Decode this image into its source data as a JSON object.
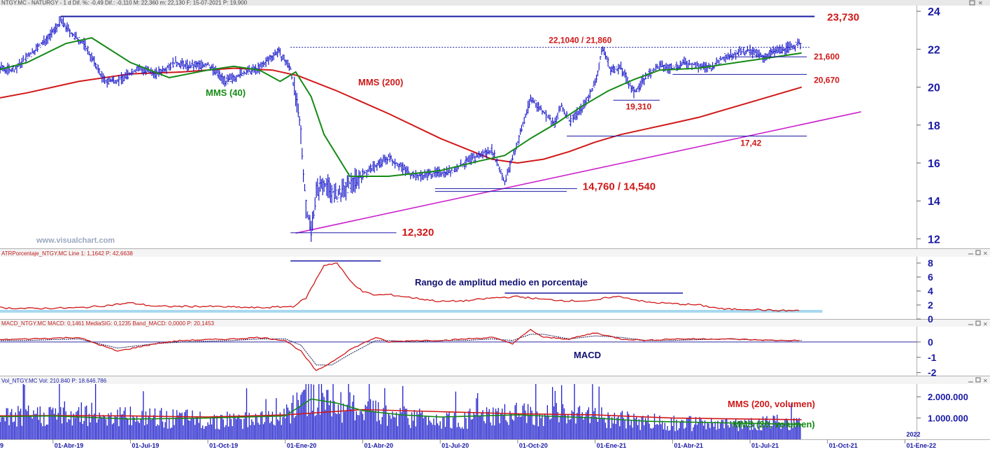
{
  "header": {
    "main": "NTGY.MC - NATURGY - 1 d  Dif. %: -0,49  Dif.: -0,110  M: 22,360  m: 22,130  F: 15-07-2021  P: 19,900",
    "atr": "ATRPorcentaje_NTGY.MC  Line 1: 1,1642  P: 42,6638",
    "macd": "MACD_NTGY.MC  MACD: 0,1461  MediaSIG: 0,1235  Band_MACD: 0,0000  P: 20,1453",
    "vol": "Vol_NTGY.MC  Vol: 210.840  P: 18.646.786"
  },
  "watermark": "www.visualchart.com",
  "colors": {
    "price": "#1d1dcc",
    "mms40": "#168a16",
    "mms200": "#d01818",
    "trend": "#cc22cc",
    "level": "#1a1aa6",
    "label_red": "#d01818",
    "label_navy": "#101070",
    "axis_text": "#1a1aa6",
    "band": "#a8d8f0",
    "grid": "#c8c8c8"
  },
  "labels": {
    "mms40": "MMS (40)",
    "mms200": "MMS (200)",
    "atr_title": "Rango de amplitud medio en porcentaje",
    "macd_title": "MACD",
    "vol200": "MMS (200, volumen)",
    "vol20": "MMS (20, volumen)"
  },
  "chart_data": [
    {
      "type": "line",
      "panel": "price",
      "x_ticks": [
        "9",
        "01-Abr-19",
        "01-Jul-19",
        "01-Oct-19",
        "01-Ene-20",
        "01-Abr-20",
        "01-Jul-20",
        "01-Oct-20",
        "01-Ene-21",
        "01-Abr-21",
        "01-Jul-21",
        "01-Oct-21",
        "01-Ene-22"
      ],
      "x_extra_label": "2022",
      "y_ticks": [
        "24",
        "22",
        "20",
        "18",
        "16",
        "14",
        "12"
      ],
      "ylim": [
        11.5,
        24.3
      ],
      "xlim": [
        0,
        35.5
      ],
      "x_unit": "months since Jan-2019",
      "series": [
        {
          "name": "NATURGY",
          "x": [
            0,
            0.5,
            1,
            1.5,
            2,
            2.5,
            3,
            3.3,
            3.8,
            4.2,
            5,
            5.6,
            6.3,
            7,
            7.7,
            8.3,
            9,
            9.7,
            10.3,
            11,
            11.7,
            12.2,
            12.4,
            12.6,
            12.8,
            13,
            13.2,
            13.5,
            14,
            14.5,
            15,
            16,
            17,
            18,
            18.5,
            19.2,
            20,
            20.5,
            21,
            21.5,
            22,
            22.4,
            22.7,
            23,
            23.5,
            24,
            24.3,
            24.6,
            25,
            25.5,
            26,
            26.5,
            27,
            27.5,
            28,
            28.5,
            29,
            29.5,
            30,
            30.5,
            31,
            31.5,
            32
          ],
          "y": [
            21.1,
            20.6,
            21.0,
            20.9,
            21.6,
            22.2,
            22.9,
            23.5,
            22.7,
            22.3,
            20.3,
            20.4,
            21.0,
            20.7,
            21.3,
            21.1,
            21.2,
            20.3,
            20.7,
            21.0,
            21.9,
            21.0,
            19.5,
            17.5,
            13.7,
            12.5,
            14.5,
            15.0,
            14.2,
            14.9,
            15.4,
            16.3,
            15.3,
            15.5,
            15.6,
            16.2,
            16.7,
            15.0,
            17.1,
            19.4,
            18.7,
            18.0,
            19.0,
            18.2,
            18.9,
            20.2,
            22.1,
            20.9,
            21.0,
            19.7,
            20.6,
            21.1,
            21.0,
            21.3,
            21.1,
            21.0,
            21.6,
            21.8,
            21.9,
            21.6,
            21.9,
            22.1,
            22.3
          ]
        },
        {
          "name": "MMS (40)",
          "x": [
            0,
            2,
            3.5,
            4.5,
            6,
            7.5,
            9,
            10,
            11,
            11.8,
            12.4,
            13,
            13.5,
            14.5,
            16,
            18,
            19.5,
            20.5,
            21.5,
            22.5,
            23.5,
            24.5,
            25.5,
            26.5,
            28,
            29.5,
            31,
            32
          ],
          "y": [
            20.6,
            21.3,
            22.3,
            22.6,
            21.3,
            20.5,
            20.9,
            21.1,
            20.9,
            20.3,
            20.8,
            19.5,
            17.5,
            15.3,
            15.3,
            15.6,
            16.1,
            16.4,
            17.3,
            18.1,
            19.0,
            19.8,
            20.4,
            20.9,
            21.0,
            21.3,
            21.6,
            21.8
          ]
        },
        {
          "name": "MMS (200)",
          "x": [
            0,
            2,
            4,
            6,
            8,
            10,
            11.5,
            12.5,
            14,
            16,
            18,
            20,
            21,
            22,
            23,
            24,
            25,
            26,
            27,
            28,
            29,
            30,
            31,
            32
          ],
          "y": [
            19.2,
            19.7,
            20.3,
            20.7,
            20.8,
            21.0,
            20.9,
            20.6,
            19.8,
            18.6,
            17.3,
            16.2,
            16.0,
            16.2,
            16.6,
            17.1,
            17.5,
            17.8,
            18.1,
            18.4,
            18.8,
            19.2,
            19.6,
            20.0
          ]
        },
        {
          "name": "trend",
          "x": [
            12.4,
            34.3
          ],
          "y": [
            12.3,
            18.7
          ]
        }
      ],
      "levels": [
        {
          "label": "23,730",
          "value": 23.73,
          "x0": 3.3,
          "x1": 32.5
        },
        {
          "label": "22,1040 / 21,860",
          "value": 22.1,
          "x0": 12.2,
          "x1": 32.3
        },
        {
          "label": "21,600",
          "value": 21.6,
          "x0": 29.2,
          "x1": 32.2
        },
        {
          "label": "20,670",
          "value": 20.67,
          "x0": 27.0,
          "x1": 32.2
        },
        {
          "label": "19,310",
          "value": 19.31,
          "x0": 24.7,
          "x1": 26.5
        },
        {
          "label": "17,42",
          "value": 17.42,
          "x0": 22.9,
          "x1": 32.2
        },
        {
          "label": "14,760 / 14,540",
          "value": 14.65,
          "x0": 17.8,
          "x1": 23.3
        },
        {
          "label": "12,320",
          "value": 12.32,
          "x0": 12.2,
          "x1": 16.3
        }
      ]
    },
    {
      "type": "line",
      "panel": "atr",
      "y_ticks": [
        "8",
        "6",
        "4",
        "2",
        "0"
      ],
      "ylim": [
        0,
        8.8
      ],
      "series": [
        {
          "name": "ATR %",
          "x": [
            0,
            2,
            4,
            5,
            6,
            7,
            9,
            11,
            12.3,
            12.8,
            13.5,
            14,
            14.5,
            15,
            15.5,
            16,
            17,
            18,
            19,
            20,
            21,
            22,
            23,
            24,
            24.5,
            25,
            26,
            27,
            28,
            29,
            30,
            31,
            32
          ],
          "y": [
            1.7,
            1.5,
            1.6,
            1.9,
            2.3,
            1.8,
            1.8,
            1.6,
            1.8,
            3.0,
            7.7,
            8.0,
            5.5,
            3.9,
            3.4,
            3.5,
            3.0,
            2.5,
            2.6,
            3.0,
            3.2,
            2.8,
            2.6,
            2.6,
            3.1,
            3.2,
            2.4,
            2.2,
            2.0,
            1.4,
            1.4,
            1.2,
            1.2
          ]
        }
      ],
      "marks": [
        {
          "value": 8.3,
          "x0": 12.2,
          "x1": 15.7
        },
        {
          "value": 3.7,
          "x0": 20.5,
          "x1": 27.4
        },
        {
          "value": 1.1,
          "x0": 0,
          "x1": 32.8
        }
      ]
    },
    {
      "type": "line",
      "panel": "macd",
      "y_ticks": [
        "0",
        "-1",
        "-2"
      ],
      "ylim": [
        -2.2,
        1.0
      ],
      "series": [
        {
          "name": "MACD",
          "x": [
            0,
            2,
            4,
            5.5,
            7,
            8,
            10,
            11,
            12,
            12.6,
            13.2,
            13.8,
            14.5,
            15.5,
            16,
            17,
            18,
            19,
            20,
            20.8,
            21.5,
            22,
            23,
            24,
            25,
            26,
            27,
            29,
            31,
            32
          ],
          "y": [
            0.1,
            0.2,
            0.3,
            -0.6,
            -0.1,
            0.1,
            0.2,
            0.3,
            0.1,
            -0.6,
            -1.9,
            -1.3,
            -0.5,
            0.3,
            0.0,
            0.1,
            0.1,
            0.2,
            0.3,
            -0.1,
            0.8,
            0.3,
            0.2,
            0.6,
            0.2,
            0.1,
            0.2,
            0.2,
            0.1,
            0.1
          ]
        },
        {
          "name": "Signal",
          "x": [
            0,
            2,
            4,
            5.5,
            7,
            8,
            10,
            11,
            12,
            12.6,
            13.2,
            13.8,
            14.5,
            15.5,
            16,
            17,
            18,
            19,
            20,
            20.8,
            21.5,
            22,
            23,
            24,
            25,
            26,
            27,
            29,
            31,
            32
          ],
          "y": [
            0.1,
            0.1,
            0.2,
            -0.4,
            -0.1,
            0.0,
            0.1,
            0.2,
            0.2,
            -0.2,
            -1.5,
            -1.5,
            -0.8,
            0.1,
            0.1,
            0.0,
            0.1,
            0.1,
            0.2,
            0.1,
            0.5,
            0.5,
            0.2,
            0.4,
            0.3,
            0.1,
            0.1,
            0.2,
            0.1,
            0.1
          ]
        }
      ]
    },
    {
      "type": "bar",
      "panel": "volume",
      "y_ticks": [
        "2.000.000",
        "1.000.000"
      ],
      "ylim": [
        0,
        2600000
      ],
      "series": [
        {
          "name": "Volumen",
          "x": [
            0,
            2,
            4,
            6,
            8,
            10,
            12,
            13,
            13.5,
            14,
            15,
            16,
            17,
            18,
            19,
            20,
            21,
            22,
            23,
            24,
            25,
            26,
            27,
            28,
            29,
            30,
            31,
            32
          ],
          "y": [
            1100000,
            1200000,
            1400000,
            1150000,
            1050000,
            1000000,
            1200000,
            2400000,
            2100000,
            1800000,
            1500000,
            1300000,
            1150000,
            1100000,
            1050000,
            1200000,
            1300000,
            1350000,
            1200000,
            1250000,
            1000000,
            950000,
            850000,
            800000,
            750000,
            820000,
            870000,
            800000
          ]
        },
        {
          "name": "MMS (200, volumen)",
          "x": [
            0,
            3,
            6,
            9,
            12,
            15,
            18,
            21,
            24,
            27,
            30,
            32
          ],
          "y": [
            1100000,
            1120000,
            1100000,
            1050000,
            1150000,
            1400000,
            1300000,
            1200000,
            1150000,
            1000000,
            950000,
            920000
          ]
        },
        {
          "name": "MMS (20, volumen)",
          "x": [
            0,
            3,
            6,
            9,
            12,
            13,
            14,
            15,
            16.5,
            18,
            21,
            24,
            26,
            28,
            30,
            32
          ],
          "y": [
            1050000,
            1100000,
            950000,
            1000000,
            1100000,
            1900000,
            1700000,
            1350000,
            1150000,
            1050000,
            1150000,
            1000000,
            850000,
            800000,
            750000,
            700000
          ]
        }
      ]
    }
  ]
}
